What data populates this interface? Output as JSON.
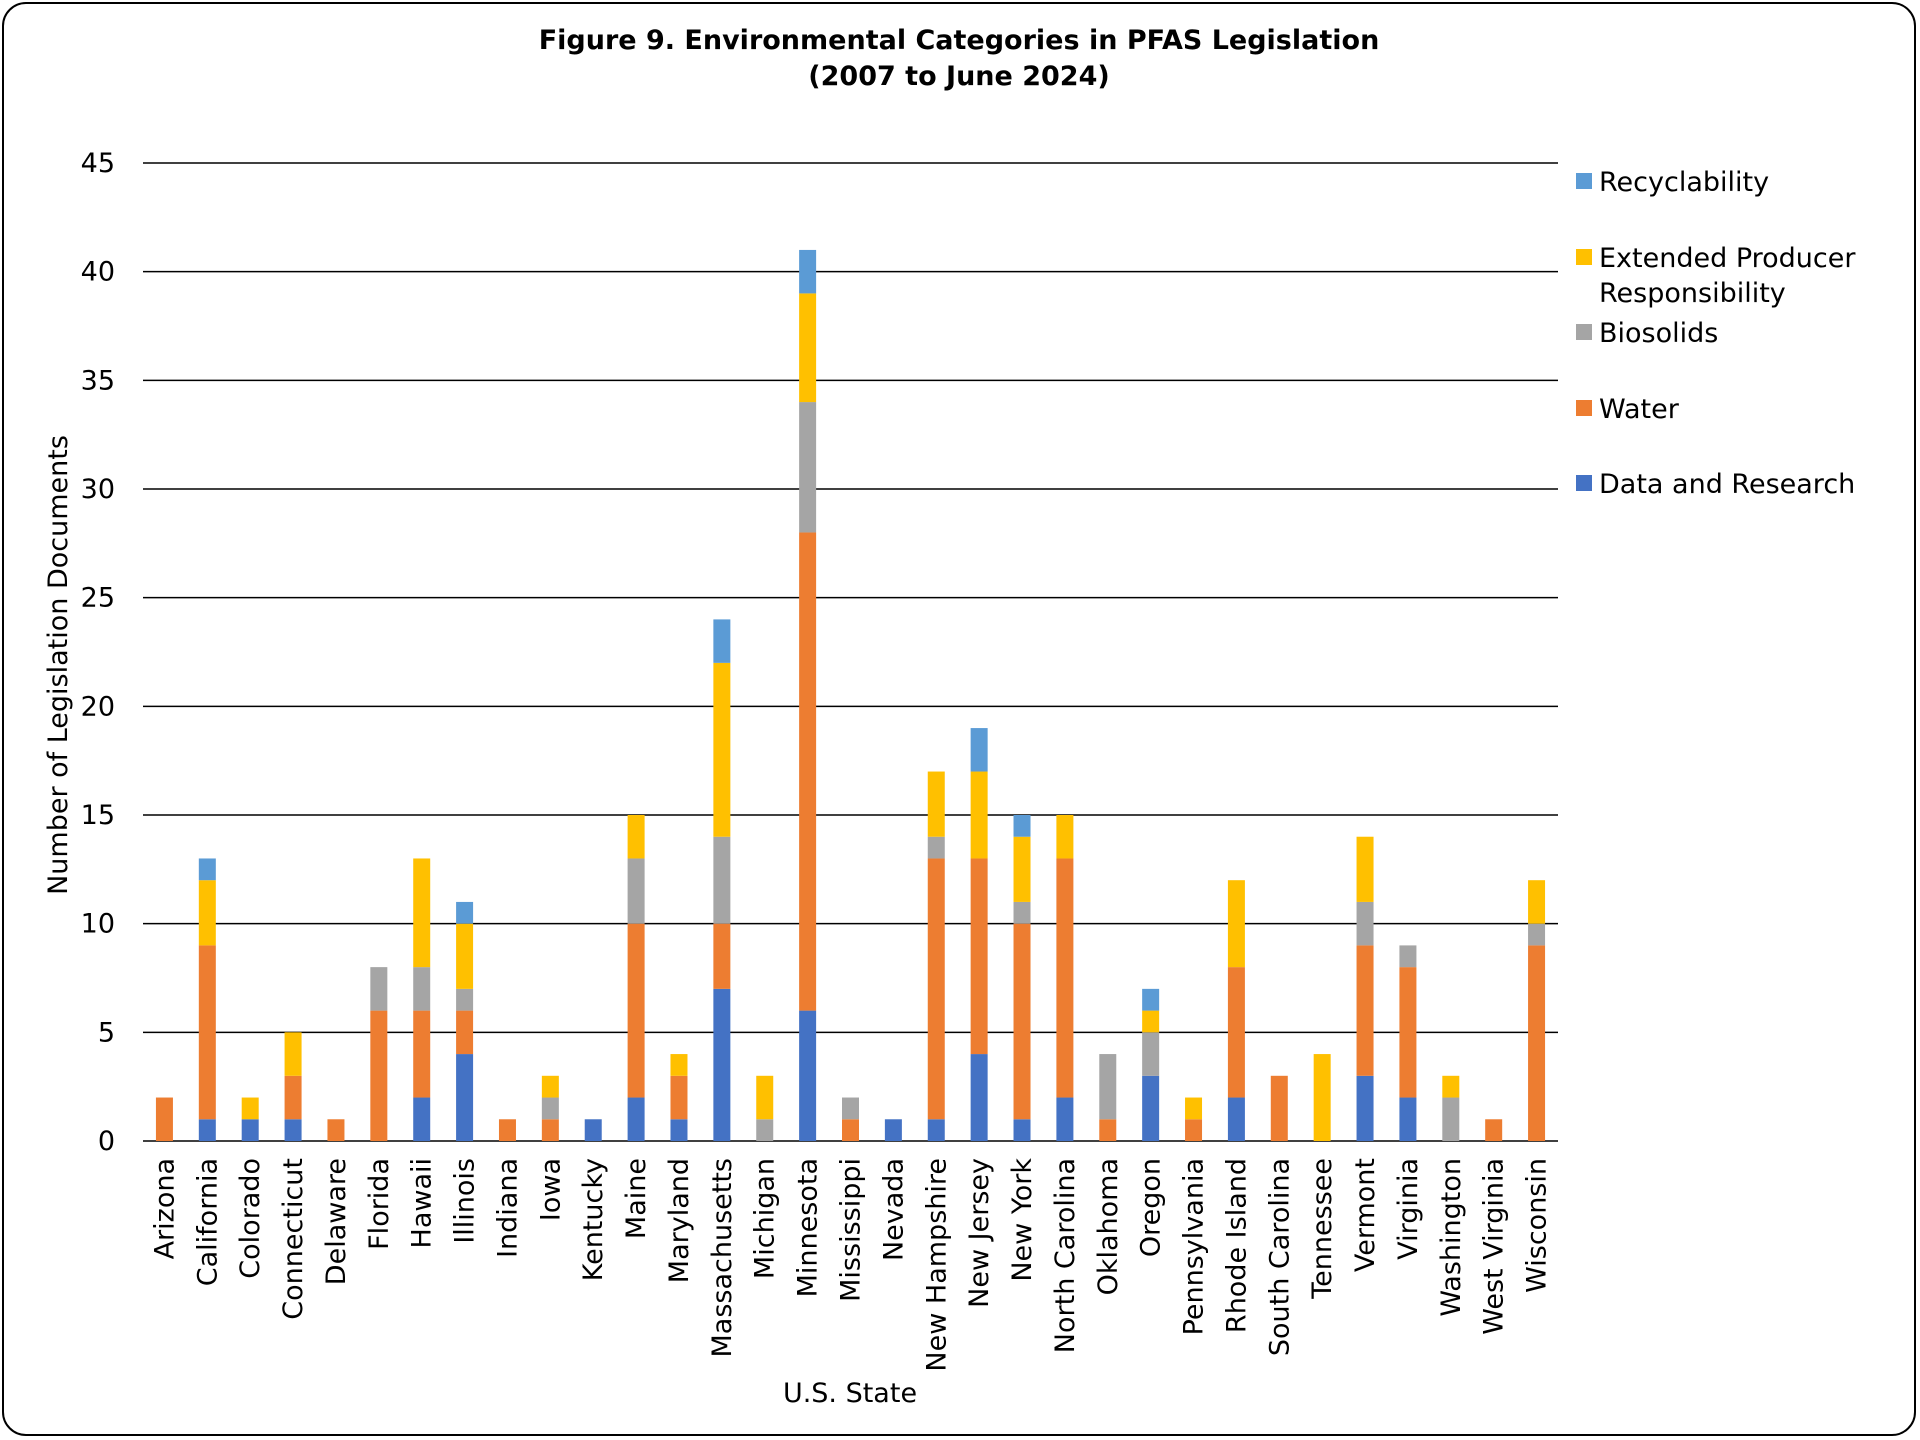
{
  "chart_data": {
    "type": "bar",
    "stacked": true,
    "title": "Figure 9. Environmental Categories in PFAS Legislation",
    "subtitle": "(2007 to June 2024)",
    "xlabel": "U.S. State",
    "ylabel": "Number of Legislation Documents",
    "ylim": [
      0,
      45
    ],
    "yticks": [
      0,
      5,
      10,
      15,
      20,
      25,
      30,
      35,
      40,
      45
    ],
    "grid": true,
    "legend_position": "right",
    "categories": [
      "Arizona",
      "California",
      "Colorado",
      "Connecticut",
      "Delaware",
      "Florida",
      "Hawaii",
      "Illinois",
      "Indiana",
      "Iowa",
      "Kentucky",
      "Maine",
      "Maryland",
      "Massachusetts",
      "Michigan",
      "Minnesota",
      "Mississippi",
      "Nevada",
      "New Hampshire",
      "New Jersey",
      "New York",
      "North Carolina",
      "Oklahoma",
      "Oregon",
      "Pennsylvania",
      "Rhode Island",
      "South Carolina",
      "Tennessee",
      "Vermont",
      "Virginia",
      "Washington",
      "West Virginia",
      "Wisconsin"
    ],
    "series": [
      {
        "name": "Data and Research",
        "color": "#4472C4",
        "values": [
          0,
          1,
          1,
          1,
          0,
          0,
          2,
          4,
          0,
          0,
          1,
          2,
          1,
          7,
          0,
          6,
          0,
          1,
          1,
          4,
          1,
          2,
          0,
          3,
          0,
          2,
          0,
          0,
          3,
          2,
          0,
          0,
          0
        ]
      },
      {
        "name": "Water",
        "color": "#ED7D31",
        "values": [
          2,
          8,
          0,
          2,
          1,
          6,
          4,
          2,
          1,
          1,
          0,
          8,
          2,
          3,
          0,
          22,
          1,
          0,
          12,
          9,
          9,
          11,
          1,
          0,
          1,
          6,
          3,
          0,
          6,
          6,
          0,
          1,
          9
        ]
      },
      {
        "name": "Biosolids",
        "color": "#A5A5A5",
        "values": [
          0,
          0,
          0,
          0,
          0,
          2,
          2,
          1,
          0,
          1,
          0,
          3,
          0,
          4,
          1,
          6,
          1,
          0,
          1,
          0,
          1,
          0,
          3,
          2,
          0,
          0,
          0,
          0,
          2,
          1,
          2,
          0,
          1
        ]
      },
      {
        "name": "Extended Producer Responsibility",
        "color": "#FFC000",
        "values": [
          0,
          3,
          1,
          2,
          0,
          0,
          5,
          3,
          0,
          1,
          0,
          2,
          1,
          8,
          2,
          5,
          0,
          0,
          3,
          4,
          3,
          2,
          0,
          1,
          1,
          4,
          0,
          4,
          3,
          0,
          1,
          0,
          2
        ]
      },
      {
        "name": "Recyclability",
        "color": "#5B9BD5",
        "values": [
          0,
          1,
          0,
          0,
          0,
          0,
          0,
          1,
          0,
          0,
          0,
          0,
          0,
          2,
          0,
          2,
          0,
          0,
          0,
          2,
          1,
          0,
          0,
          1,
          0,
          0,
          0,
          0,
          0,
          0,
          0,
          0,
          0
        ]
      }
    ],
    "legend": [
      {
        "label_lines": [
          "Recyclability"
        ],
        "color": "#5B9BD5"
      },
      {
        "label_lines": [
          "Extended Producer",
          "Responsibility"
        ],
        "color": "#FFC000"
      },
      {
        "label_lines": [
          "Biosolids"
        ],
        "color": "#A5A5A5"
      },
      {
        "label_lines": [
          "Water"
        ],
        "color": "#ED7D31"
      },
      {
        "label_lines": [
          "Data and Research"
        ],
        "color": "#4472C4"
      }
    ]
  }
}
